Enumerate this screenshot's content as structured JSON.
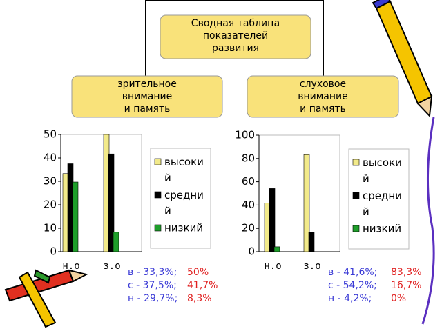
{
  "diagram": {
    "root": [
      "Сводная таблица",
      "показателей",
      "развития"
    ],
    "left": [
      "зрительное",
      "внимание",
      "и память"
    ],
    "right": [
      "слуховое",
      "внимание",
      "и память"
    ]
  },
  "chart_data": [
    {
      "type": "bar",
      "categories": [
        "н.о",
        "з.о"
      ],
      "ylim": [
        0,
        50
      ],
      "yticks": [
        0,
        10,
        20,
        30,
        40,
        50
      ],
      "series": [
        {
          "name": "высокий",
          "color": "#f2ea8a",
          "values": [
            33.3,
            50
          ]
        },
        {
          "name": "средний",
          "color": "#000000",
          "values": [
            37.5,
            41.7
          ]
        },
        {
          "name": "низкий",
          "color": "#1e9e2a",
          "values": [
            29.7,
            8.3
          ]
        }
      ],
      "notes": [
        [
          "в - 33,3%;",
          "50%"
        ],
        [
          "с - 37,5%;",
          "41,7%"
        ],
        [
          "н - 29,7%;",
          "8,3%"
        ]
      ]
    },
    {
      "type": "bar",
      "categories": [
        "н.о",
        "з.о"
      ],
      "ylim": [
        0,
        100
      ],
      "yticks": [
        0,
        20,
        40,
        60,
        80,
        100
      ],
      "series": [
        {
          "name": "высокий",
          "color": "#f2ea8a",
          "values": [
            41.6,
            83.3
          ]
        },
        {
          "name": "средний",
          "color": "#000000",
          "values": [
            54.2,
            16.7
          ]
        },
        {
          "name": "низкий",
          "color": "#1e9e2a",
          "values": [
            4.2,
            0
          ]
        }
      ],
      "notes": [
        [
          "в - 41,6%;",
          "83,3%"
        ],
        [
          "с - 54,2%;",
          "16,7%"
        ],
        [
          "н - 4,2%;",
          "0%"
        ]
      ]
    }
  ]
}
